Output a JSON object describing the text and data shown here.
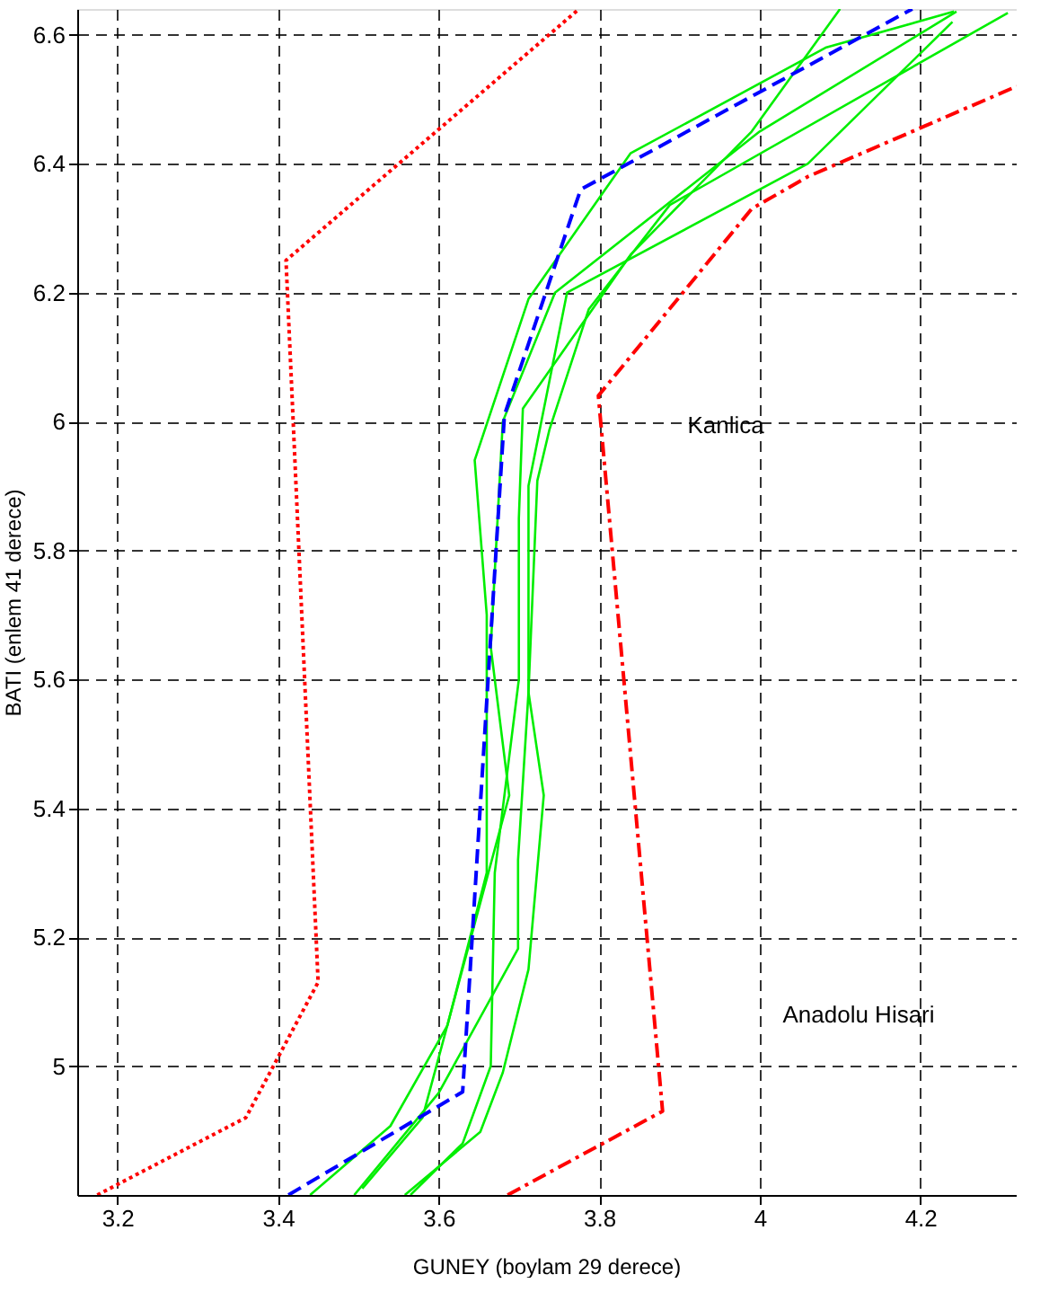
{
  "chart_data": {
    "type": "line",
    "xlabel": "GUNEY (boylam 29 derece)",
    "ylabel": "BATI (enlem 41 derece)",
    "xlim": [
      3.15,
      4.32
    ],
    "ylim": [
      4.8,
      6.64
    ],
    "xticks": [
      3.2,
      3.4,
      3.6,
      3.8,
      4,
      4.2
    ],
    "yticks": [
      5,
      5.2,
      5.4,
      5.6,
      5.8,
      6,
      6.2,
      6.4,
      6.6
    ],
    "grid": true,
    "series": [
      {
        "color": "#ff0000",
        "line_style": "dotted",
        "x": [
          3.175,
          3.36,
          3.45,
          3.41,
          3.775
        ],
        "values": [
          4.8,
          4.92,
          5.13,
          6.25,
          6.64
        ]
      },
      {
        "color": "#ff0000",
        "line_style": "dashdot",
        "x": [
          3.686,
          3.879,
          3.799,
          3.99,
          4.06,
          4.32
        ],
        "values": [
          4.8,
          4.93,
          6.04,
          6.33,
          6.38,
          6.52
        ]
      },
      {
        "color": "#00ee00",
        "line_style": "solid",
        "x": [
          3.44,
          3.54,
          3.611,
          3.66,
          3.66,
          3.645,
          3.712,
          3.839,
          4.082,
          4.242
        ],
        "values": [
          4.8,
          4.907,
          5.063,
          5.3,
          5.7,
          5.94,
          6.19,
          6.416,
          6.58,
          6.636
        ]
      },
      {
        "color": "#00ee00",
        "line_style": "solid",
        "x": [
          3.495,
          3.6,
          3.699,
          3.699,
          3.712,
          3.723,
          3.738,
          3.787,
          3.888,
          4.309
        ],
        "values": [
          4.8,
          4.958,
          5.182,
          5.32,
          5.58,
          5.908,
          5.987,
          6.174,
          6.336,
          6.634
        ]
      },
      {
        "color": "#00ee00",
        "line_style": "solid",
        "x": [
          3.505,
          3.58,
          3.688,
          3.665,
          3.68,
          3.745,
          4.0,
          4.245
        ],
        "values": [
          4.81,
          4.92,
          5.42,
          5.65,
          6.0,
          6.2,
          6.45,
          6.636
        ]
      },
      {
        "color": "#00ee00",
        "line_style": "solid",
        "x": [
          3.558,
          3.652,
          3.68,
          3.712,
          3.731,
          3.712,
          3.712,
          3.76,
          4.06,
          4.24
        ],
        "values": [
          4.8,
          4.898,
          4.99,
          5.15,
          5.42,
          5.58,
          5.9,
          6.2,
          6.4,
          6.62
        ]
      },
      {
        "color": "#00ee00",
        "line_style": "solid",
        "x": [
          3.565,
          3.63,
          3.665,
          3.67,
          3.7,
          3.7,
          3.705,
          3.84,
          3.99,
          4.1
        ],
        "values": [
          4.8,
          4.88,
          5.0,
          5.3,
          5.6,
          5.85,
          6.02,
          6.26,
          6.45,
          6.64
        ]
      },
      {
        "color": "#0000ff",
        "line_style": "dashed",
        "x": [
          3.413,
          3.63,
          3.682,
          3.777,
          4.19
        ],
        "values": [
          4.8,
          4.96,
          6.01,
          6.36,
          6.64
        ]
      }
    ],
    "annotations": [
      "Kanlica",
      "Anadolu Hisari"
    ]
  }
}
